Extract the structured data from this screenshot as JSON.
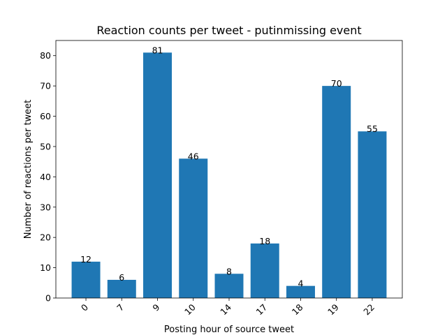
{
  "chart_data": {
    "type": "bar",
    "title": "Reaction counts per tweet - putinmissing event",
    "xlabel": "Posting hour of source tweet",
    "ylabel": "Number of reactions per tweet",
    "categories": [
      "0",
      "7",
      "9",
      "10",
      "14",
      "17",
      "18",
      "19",
      "22"
    ],
    "values": [
      12,
      6,
      81,
      46,
      8,
      18,
      4,
      70,
      55
    ],
    "ylim": [
      0,
      85
    ],
    "yticks": [
      0,
      10,
      20,
      30,
      40,
      50,
      60,
      70,
      80
    ],
    "bar_color": "#1f77b4",
    "grid": false,
    "x_tick_rotation_deg": 45,
    "show_data_labels": true
  }
}
